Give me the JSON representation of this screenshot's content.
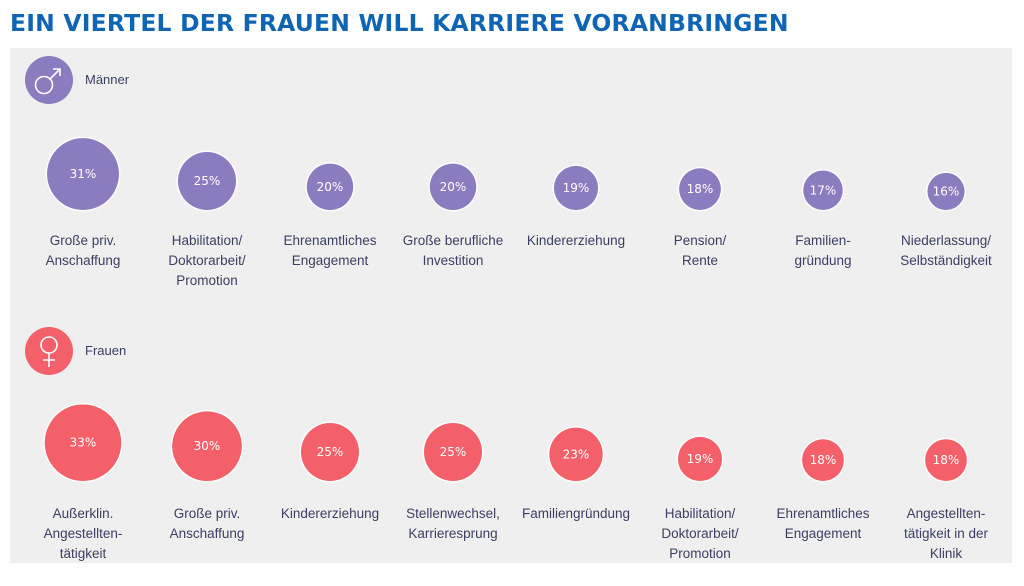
{
  "title": "EIN VIERTEL DER FRAUEN WILL KARRIERE VORANBRINGEN",
  "colors": {
    "title": "#0f64b4",
    "men": "#8b7cc0",
    "women": "#f4606a",
    "panel": "#efefef",
    "label": "#3a3f63"
  },
  "chart_data": {
    "type": "bubble",
    "title": "EIN VIERTEL DER FRAUEN WILL KARRIERE VORANBRINGEN",
    "unit": "%",
    "groups": [
      {
        "name": "Männer",
        "icon": "male-symbol-icon",
        "items": [
          {
            "label": [
              "Große priv.",
              "Anschaffung"
            ],
            "value": 31,
            "display": "31%"
          },
          {
            "label": [
              "Habilitation/",
              "Doktorarbeit/",
              "Promotion"
            ],
            "value": 25,
            "display": "25%"
          },
          {
            "label": [
              "Ehrenamtliches",
              "Engagement"
            ],
            "value": 20,
            "display": "20%"
          },
          {
            "label": [
              "Große berufliche",
              "Investition"
            ],
            "value": 20,
            "display": "20%"
          },
          {
            "label": [
              "Kindererziehung"
            ],
            "value": 19,
            "display": "19%"
          },
          {
            "label": [
              "Pension/",
              "Rente"
            ],
            "value": 18,
            "display": "18%"
          },
          {
            "label": [
              "Familien-",
              "gründung"
            ],
            "value": 17,
            "display": "17%"
          },
          {
            "label": [
              "Niederlassung/",
              "Selbständigkeit"
            ],
            "value": 16,
            "display": "16%"
          }
        ]
      },
      {
        "name": "Frauen",
        "icon": "female-symbol-icon",
        "items": [
          {
            "label": [
              "Außerklin.",
              "Angestellten-",
              "tätigkeit"
            ],
            "value": 33,
            "display": "33%"
          },
          {
            "label": [
              "Große priv.",
              "Anschaffung"
            ],
            "value": 30,
            "display": "30%"
          },
          {
            "label": [
              "Kindererziehung"
            ],
            "value": 25,
            "display": "25%"
          },
          {
            "label": [
              "Stellenwechsel,",
              "Karrieresprung"
            ],
            "value": 25,
            "display": "25%"
          },
          {
            "label": [
              "Familiengründung"
            ],
            "value": 23,
            "display": "23%"
          },
          {
            "label": [
              "Habilitation/",
              "Doktorarbeit/",
              "Promotion"
            ],
            "value": 19,
            "display": "19%"
          },
          {
            "label": [
              "Ehrenamtliches",
              "Engagement"
            ],
            "value": 18,
            "display": "18%"
          },
          {
            "label": [
              "Angestellten-",
              "tätigkeit in der",
              "Klinik"
            ],
            "value": 18,
            "display": "18%"
          }
        ]
      }
    ]
  }
}
